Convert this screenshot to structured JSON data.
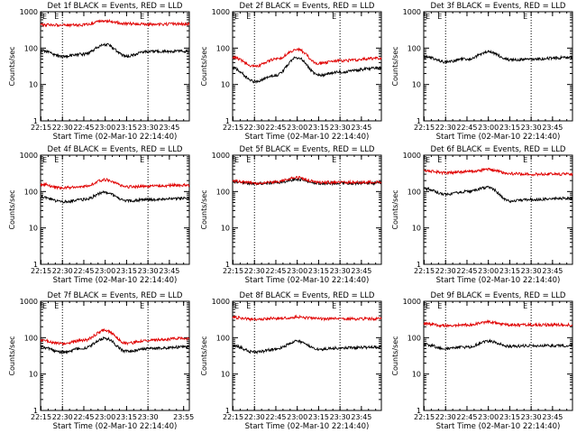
{
  "chart_data": [
    {
      "type": "line",
      "title": "Det 1f BLACK = Events, RED = LLD",
      "xlabel": "Start Time (02-Mar-10 22:14:40)",
      "ylabel": "Counts/sec",
      "yscale": "log",
      "ylim": [
        1,
        1000
      ],
      "x_ticks": [
        "22:15",
        "22:30",
        "22:45",
        "23:00",
        "23:15",
        "23:30",
        "23:45"
      ],
      "y_ticks": [
        "1",
        "10",
        "100",
        "1000"
      ],
      "markers": [
        "E",
        "E"
      ],
      "series": [
        {
          "name": "",
          "color": "#000000",
          "x": [
            "22:15",
            "22:30",
            "22:45",
            "23:00",
            "23:15",
            "23:30",
            "23:55"
          ],
          "values": [
            85,
            58,
            68,
            125,
            60,
            80,
            82
          ]
        },
        {
          "name": "",
          "color": "#e00000",
          "x": [
            "22:15",
            "22:30",
            "22:45",
            "23:00",
            "23:15",
            "23:30",
            "23:55"
          ],
          "values": [
            440,
            430,
            435,
            560,
            470,
            450,
            460
          ]
        }
      ]
    },
    {
      "type": "line",
      "title": "Det 2f BLACK = Events, RED = LLD",
      "xlabel": "Start Time (02-Mar-10 22:14:40)",
      "ylabel": "Counts/sec",
      "yscale": "log",
      "ylim": [
        1,
        1000
      ],
      "x_ticks": [
        "22:15",
        "22:30",
        "22:45",
        "23:00",
        "23:15",
        "23:30",
        "23:45"
      ],
      "y_ticks": [
        "1",
        "10",
        "100",
        "1000"
      ],
      "markers": [
        "E",
        "E"
      ],
      "series": [
        {
          "name": "",
          "color": "#000000",
          "x": [
            "22:15",
            "22:30",
            "22:45",
            "23:00",
            "23:15",
            "23:30",
            "23:55"
          ],
          "values": [
            28,
            12,
            18,
            55,
            18,
            22,
            28
          ]
        },
        {
          "name": "",
          "color": "#e00000",
          "x": [
            "22:15",
            "22:30",
            "22:45",
            "23:00",
            "23:15",
            "23:30",
            "23:55"
          ],
          "values": [
            55,
            32,
            50,
            92,
            38,
            45,
            52
          ]
        }
      ]
    },
    {
      "type": "line",
      "title": "Det 3f BLACK = Events, RED = LLD",
      "xlabel": "Start Time (02-Mar-10 22:14:40)",
      "ylabel": "Counts/sec",
      "yscale": "log",
      "ylim": [
        1,
        1000
      ],
      "x_ticks": [
        "22:15",
        "22:30",
        "22:45",
        "23:00",
        "23:15",
        "23:30",
        "23:45"
      ],
      "y_ticks": [
        "1",
        "10",
        "100",
        "1000"
      ],
      "markers": [
        "E",
        "E"
      ],
      "series": [
        {
          "name": "",
          "color": "#000000",
          "x": [
            "22:15",
            "22:30",
            "22:45",
            "23:00",
            "23:15",
            "23:30",
            "23:55"
          ],
          "values": [
            58,
            42,
            50,
            78,
            48,
            50,
            55
          ]
        }
      ]
    },
    {
      "type": "line",
      "title": "Det 4f BLACK = Events, RED = LLD",
      "xlabel": "Start Time (02-Mar-10 22:14:40)",
      "ylabel": "Counts/sec",
      "yscale": "log",
      "ylim": [
        1,
        1000
      ],
      "x_ticks": [
        "22:15",
        "22:30",
        "22:45",
        "23:00",
        "23:15",
        "23:30",
        "23:45"
      ],
      "y_ticks": [
        "1",
        "10",
        "100",
        "1000"
      ],
      "markers": [
        "E",
        "E"
      ],
      "series": [
        {
          "name": "",
          "color": "#000000",
          "x": [
            "22:15",
            "22:30",
            "22:45",
            "23:00",
            "23:15",
            "23:30",
            "23:55"
          ],
          "values": [
            72,
            52,
            60,
            95,
            55,
            60,
            65
          ]
        },
        {
          "name": "",
          "color": "#e00000",
          "x": [
            "22:15",
            "22:30",
            "22:45",
            "23:00",
            "23:15",
            "23:30",
            "23:55"
          ],
          "values": [
            160,
            125,
            140,
            210,
            135,
            140,
            150
          ]
        }
      ]
    },
    {
      "type": "line",
      "title": "Det 5f BLACK = Events, RED = LLD",
      "xlabel": "Start Time (02-Mar-10 22:14:40)",
      "ylabel": "Counts/sec",
      "yscale": "log",
      "ylim": [
        1,
        1000
      ],
      "x_ticks": [
        "22:15",
        "22:30",
        "22:45",
        "23:00",
        "23:15",
        "23:30",
        "23:45"
      ],
      "y_ticks": [
        "1",
        "10",
        "100",
        "1000"
      ],
      "markers": [
        "E",
        "E"
      ],
      "series": [
        {
          "name": "",
          "color": "#000000",
          "x": [
            "22:15",
            "22:30",
            "22:45",
            "23:00",
            "23:15",
            "23:30",
            "23:55"
          ],
          "values": [
            185,
            165,
            175,
            215,
            170,
            170,
            170
          ]
        },
        {
          "name": "",
          "color": "#e00000",
          "x": [
            "22:15",
            "22:30",
            "22:45",
            "23:00",
            "23:15",
            "23:30",
            "23:55"
          ],
          "values": [
            195,
            170,
            185,
            240,
            180,
            180,
            180
          ]
        }
      ]
    },
    {
      "type": "line",
      "title": "Det 6f BLACK = Events, RED = LLD",
      "xlabel": "Start Time (02-Mar-10 22:14:40)",
      "ylabel": "Counts/sec",
      "yscale": "log",
      "ylim": [
        1,
        1000
      ],
      "x_ticks": [
        "22:15",
        "22:30",
        "22:45",
        "23:00",
        "23:15",
        "23:30",
        "23:45"
      ],
      "y_ticks": [
        "1",
        "10",
        "100",
        "1000"
      ],
      "markers": [
        "E",
        "E"
      ],
      "series": [
        {
          "name": "",
          "color": "#000000",
          "x": [
            "22:15",
            "22:30",
            "22:45",
            "23:00",
            "23:15",
            "23:30",
            "23:55"
          ],
          "values": [
            120,
            85,
            100,
            130,
            55,
            60,
            65
          ]
        },
        {
          "name": "",
          "color": "#e00000",
          "x": [
            "22:15",
            "22:30",
            "22:45",
            "23:00",
            "23:15",
            "23:30",
            "23:55"
          ],
          "values": [
            370,
            330,
            350,
            400,
            310,
            300,
            300
          ]
        }
      ]
    },
    {
      "type": "line",
      "title": "Det 7f BLACK = Events, RED = LLD",
      "xlabel": "Start Time (02-Mar-10 22:14:40)",
      "ylabel": "Counts/sec",
      "yscale": "log",
      "ylim": [
        1,
        1000
      ],
      "x_ticks": [
        "22:15",
        "22:30",
        "22:45",
        "23:00",
        "23:15",
        "23:30",
        "23:55"
      ],
      "y_ticks": [
        "1",
        "10",
        "100",
        "1000"
      ],
      "markers": [
        "E",
        "E"
      ],
      "series": [
        {
          "name": "",
          "color": "#000000",
          "x": [
            "22:15",
            "22:30",
            "22:45",
            "23:00",
            "23:15",
            "23:30",
            "23:55"
          ],
          "values": [
            55,
            40,
            52,
            95,
            42,
            50,
            55
          ]
        },
        {
          "name": "",
          "color": "#e00000",
          "x": [
            "22:15",
            "22:30",
            "22:45",
            "23:00",
            "23:15",
            "23:30",
            "23:55"
          ],
          "values": [
            85,
            68,
            85,
            160,
            70,
            85,
            95
          ]
        }
      ]
    },
    {
      "type": "line",
      "title": "Det 8f BLACK = Events, RED = LLD",
      "xlabel": "Start Time (02-Mar-10 22:14:40)",
      "ylabel": "Counts/sec",
      "yscale": "log",
      "ylim": [
        1,
        1000
      ],
      "x_ticks": [
        "22:15",
        "22:30",
        "22:45",
        "23:00",
        "23:15",
        "23:30",
        "23:45"
      ],
      "y_ticks": [
        "1",
        "10",
        "100",
        "1000"
      ],
      "markers": [
        "E",
        "E"
      ],
      "series": [
        {
          "name": "",
          "color": "#000000",
          "x": [
            "22:15",
            "22:30",
            "22:45",
            "23:00",
            "23:15",
            "23:30",
            "23:55"
          ],
          "values": [
            60,
            40,
            48,
            80,
            48,
            52,
            55
          ]
        },
        {
          "name": "",
          "color": "#e00000",
          "x": [
            "22:15",
            "22:30",
            "22:45",
            "23:00",
            "23:15",
            "23:30",
            "23:55"
          ],
          "values": [
            360,
            320,
            340,
            370,
            330,
            330,
            330
          ]
        }
      ]
    },
    {
      "type": "line",
      "title": "Det 9f BLACK = Events, RED = LLD",
      "xlabel": "Start Time (02-Mar-10 22:14:40)",
      "ylabel": "Counts/sec",
      "yscale": "log",
      "ylim": [
        1,
        1000
      ],
      "x_ticks": [
        "22:15",
        "22:30",
        "22:45",
        "23:00",
        "23:15",
        "23:30",
        "23:45"
      ],
      "y_ticks": [
        "1",
        "10",
        "100",
        "1000"
      ],
      "markers": [
        "E",
        "E"
      ],
      "series": [
        {
          "name": "",
          "color": "#000000",
          "x": [
            "22:15",
            "22:30",
            "22:45",
            "23:00",
            "23:15",
            "23:30",
            "23:55"
          ],
          "values": [
            65,
            50,
            55,
            80,
            58,
            60,
            60
          ]
        },
        {
          "name": "",
          "color": "#e00000",
          "x": [
            "22:15",
            "22:30",
            "22:45",
            "23:00",
            "23:15",
            "23:30",
            "23:55"
          ],
          "values": [
            240,
            215,
            225,
            270,
            225,
            225,
            225
          ]
        }
      ]
    }
  ]
}
